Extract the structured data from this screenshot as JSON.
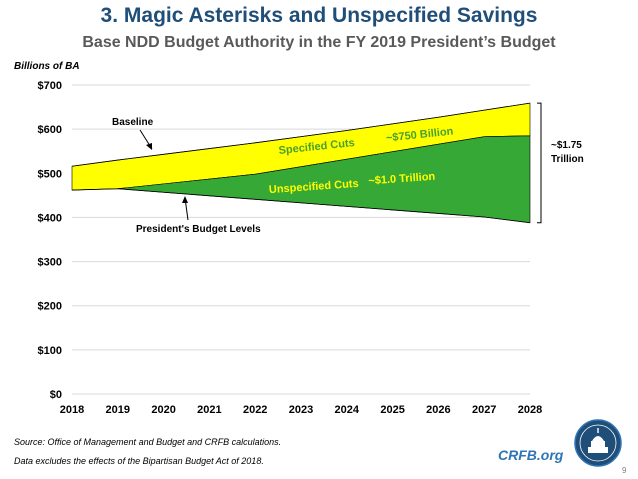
{
  "header": {
    "title": "3. Magic Asterisks and Unspecified Savings",
    "subtitle": "Base NDD Budget Authority in the FY 2019 President’s Budget"
  },
  "chart_data": {
    "type": "area",
    "ylabel": "Billions of BA",
    "xlabel": "",
    "ylim": [
      0,
      700
    ],
    "yticks": [
      0,
      100,
      200,
      300,
      400,
      500,
      600,
      700
    ],
    "ytick_labels": [
      "$0",
      "$100",
      "$200",
      "$300",
      "$400",
      "$500",
      "$600",
      "$700"
    ],
    "xlim": [
      2018,
      2028
    ],
    "x": [
      2018,
      2019,
      2020,
      2021,
      2022,
      2023,
      2024,
      2025,
      2026,
      2027,
      2028
    ],
    "grid": true,
    "series": [
      {
        "name": "Baseline",
        "values": [
          516,
          530,
          543,
          556,
          569,
          583,
          597,
          612,
          627,
          643,
          659
        ]
      },
      {
        "name": "Specified Cuts Boundary",
        "values": [
          462,
          465,
          476,
          487,
          498,
          515,
          532,
          549,
          566,
          583,
          585
        ]
      },
      {
        "name": "President's Budget Levels",
        "values": [
          462,
          465,
          457,
          449,
          441,
          433,
          425,
          417,
          409,
          401,
          388
        ]
      }
    ],
    "areas": [
      {
        "name": "Specified Cuts",
        "color": "#ffff00",
        "label": "Specified Cuts",
        "amount": "~$750 Billion"
      },
      {
        "name": "Unspecified Cuts",
        "color": "#35a836",
        "label": "Unspecified Cuts",
        "amount": "~$1.0 Trillion"
      }
    ],
    "annotations": {
      "baseline": "Baseline",
      "presidents_budget": "President's Budget Levels",
      "total_line1": "~$1.75",
      "total_line2": "Trillion"
    }
  },
  "footer": {
    "source": "Source: Office of Management and Budget and CRFB calculations.",
    "note": "Data excludes the effects of the Bipartisan Budget Act of 2018.",
    "brand": "CRFB.org",
    "page": "9"
  },
  "colors": {
    "title": "#1f4e79",
    "brand": "#2e75b6",
    "specified": "#ffff00",
    "unspecified": "#35a836"
  }
}
